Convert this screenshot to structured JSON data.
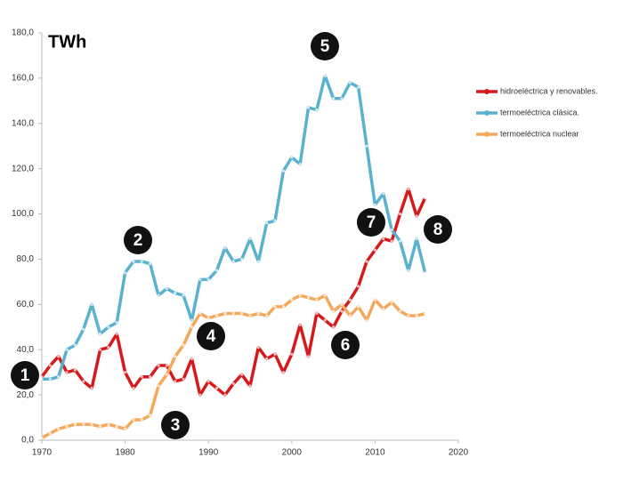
{
  "chart_data": {
    "type": "line",
    "unit_label": "TWh",
    "x": [
      1970,
      1971,
      1972,
      1973,
      1974,
      1975,
      1976,
      1977,
      1978,
      1979,
      1980,
      1981,
      1982,
      1983,
      1984,
      1985,
      1986,
      1987,
      1988,
      1989,
      1990,
      1991,
      1992,
      1993,
      1994,
      1995,
      1996,
      1997,
      1998,
      1999,
      2000,
      2001,
      2002,
      2003,
      2004,
      2005,
      2006,
      2007,
      2008,
      2009,
      2010,
      2011,
      2012,
      2013,
      2014,
      2015,
      2016
    ],
    "series": [
      {
        "name": "hidroeléctrica y renovables.",
        "color": "#d7191c",
        "values": [
          28,
          33,
          37,
          30,
          31,
          26,
          23,
          40,
          41,
          47,
          30,
          23,
          28,
          28,
          33,
          33,
          26,
          27,
          36,
          20,
          26,
          23,
          20,
          25,
          29,
          24,
          41,
          36,
          38,
          30,
          38,
          51,
          37,
          56,
          53,
          50,
          57,
          62,
          68,
          79,
          84,
          89,
          88,
          100,
          111,
          99,
          107
        ]
      },
      {
        "name": "termoeléctrica clásica.",
        "color": "#5bb2cf",
        "values": [
          27,
          27,
          28,
          40,
          42,
          49,
          60,
          47,
          50,
          52,
          74,
          79,
          79,
          78,
          64,
          67,
          65,
          64,
          53,
          71,
          71,
          75,
          85,
          79,
          80,
          89,
          79,
          96,
          97,
          119,
          125,
          122,
          147,
          146,
          161,
          151,
          151,
          158,
          156,
          130,
          104,
          109,
          93,
          88,
          75,
          89,
          74
        ]
      },
      {
        "name": "termoeléctrica nuclear",
        "color": "#f5a85a",
        "values": [
          1,
          3,
          5,
          6,
          7,
          7,
          7,
          6,
          7,
          6,
          5,
          9,
          9,
          11,
          24,
          29,
          37,
          42,
          50,
          56,
          54,
          55,
          56,
          56,
          56,
          55,
          56,
          55,
          59,
          59,
          62,
          64,
          63,
          62,
          64,
          57,
          60,
          55,
          59,
          53,
          62,
          58,
          61,
          57,
          55,
          55,
          56
        ]
      }
    ],
    "xlim": [
      1970,
      2020
    ],
    "xticks": [
      1970,
      1980,
      1990,
      2000,
      2010,
      2020
    ],
    "ylim": [
      0,
      180
    ],
    "yticks": [
      {
        "value": 0,
        "label": "0,0"
      },
      {
        "value": 20,
        "label": "20,0"
      },
      {
        "value": 40,
        "label": "40,0"
      },
      {
        "value": 60,
        "label": "60,0"
      },
      {
        "value": 80,
        "label": "80,0"
      },
      {
        "value": 100,
        "label": "100,0"
      },
      {
        "value": 120,
        "label": "120,0"
      },
      {
        "value": 140,
        "label": "140,0"
      },
      {
        "value": 160,
        "label": "160,0"
      },
      {
        "value": 180,
        "label": "180,0"
      }
    ],
    "grid": false,
    "legend": "right",
    "annotations": [
      "1",
      "2",
      "3",
      "4",
      "5",
      "6",
      "7",
      "8"
    ]
  }
}
